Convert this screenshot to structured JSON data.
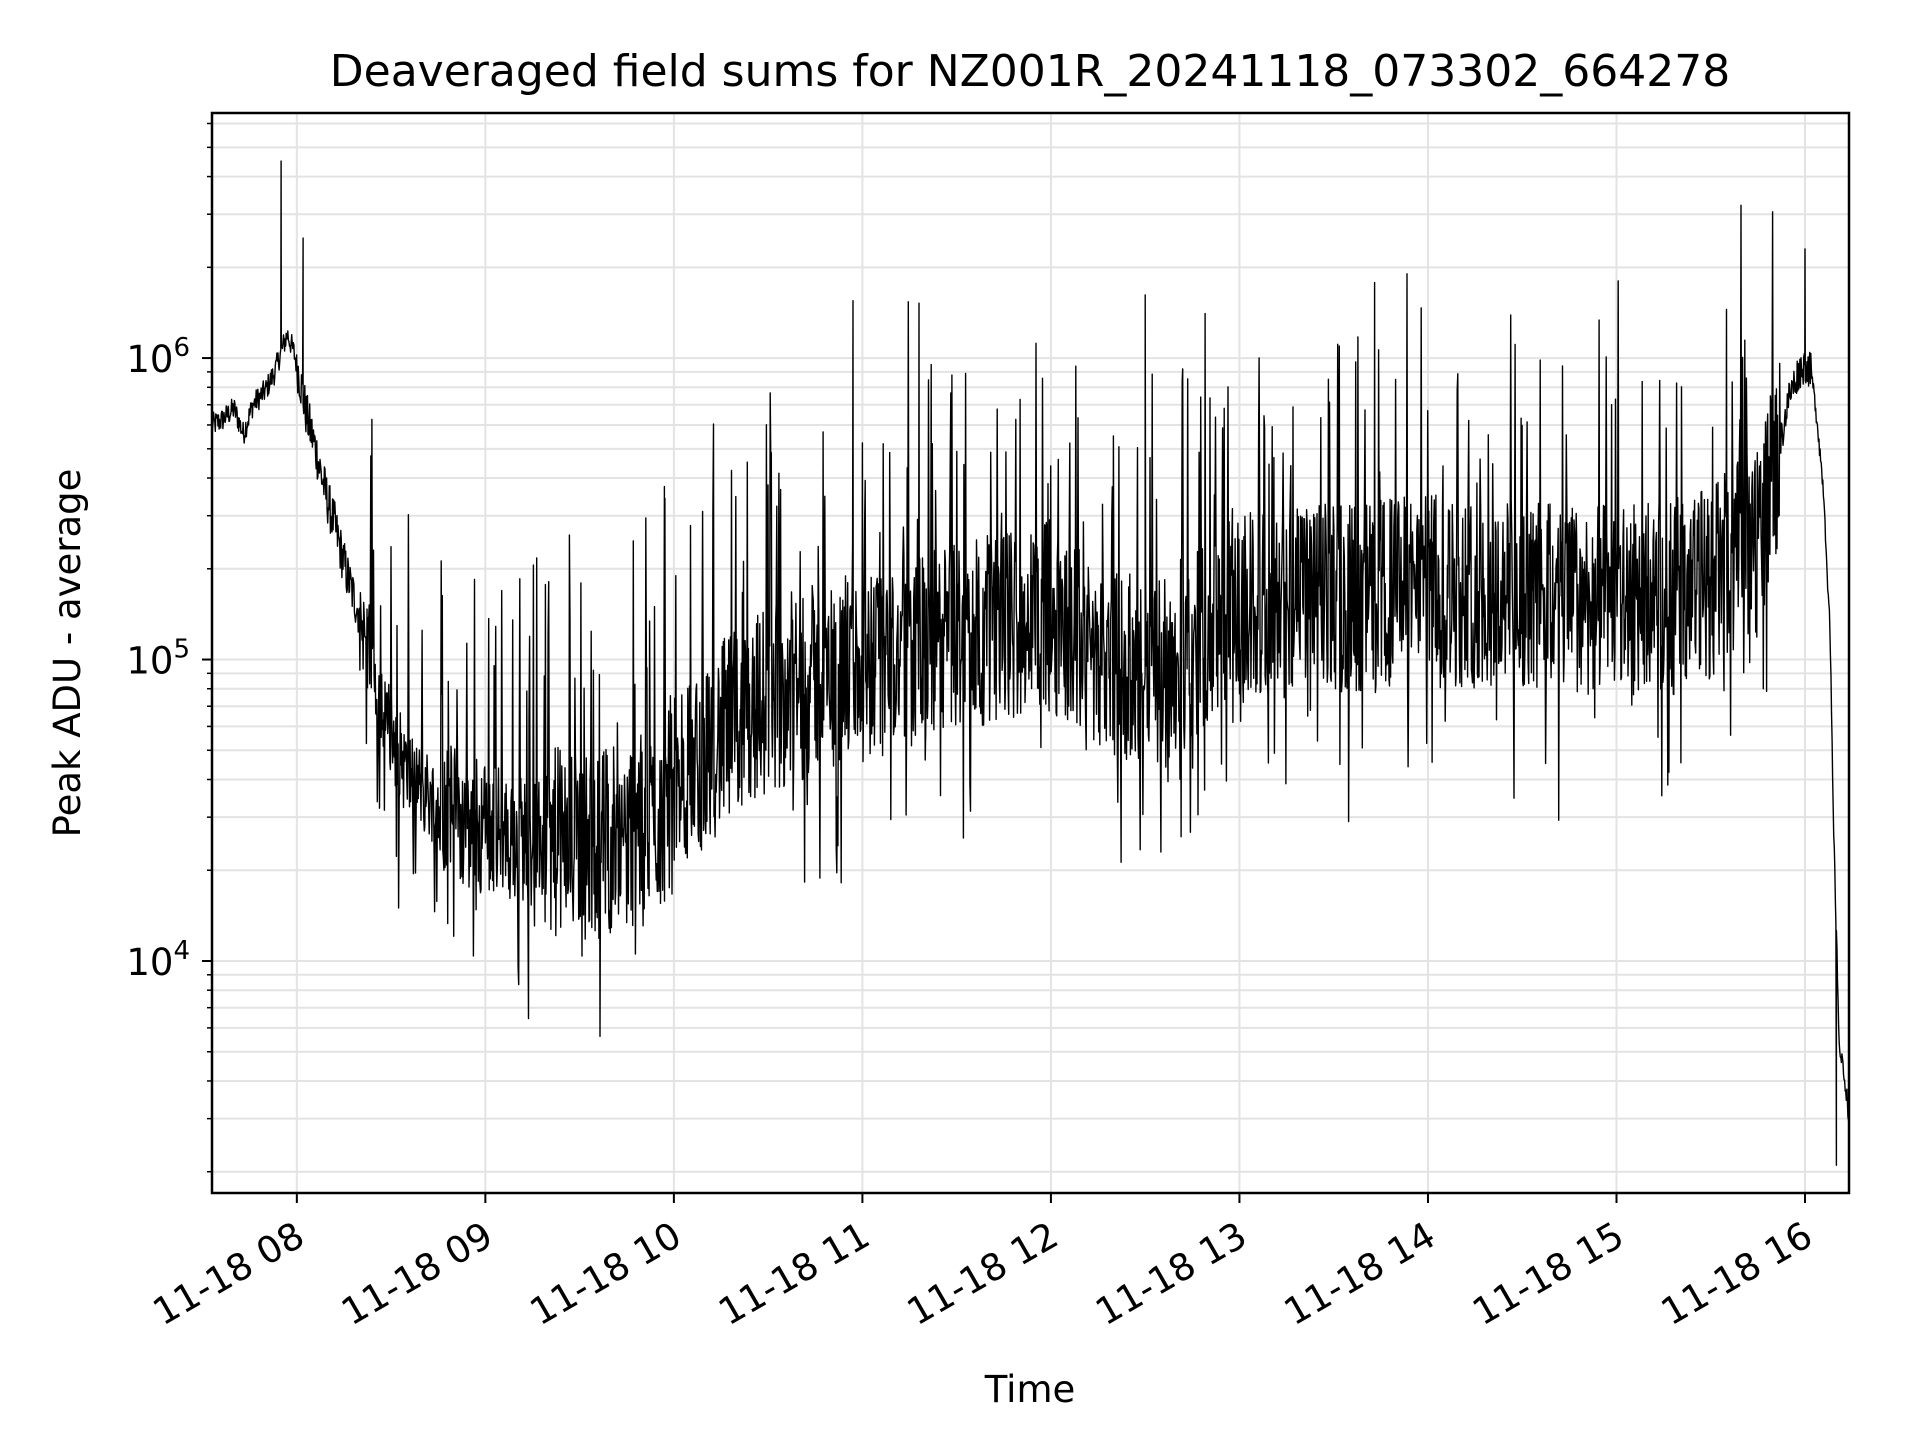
{
  "chart_data": {
    "type": "line",
    "title": "Deaveraged field sums for NZ001R_20241118_073302_664278",
    "xlabel": "Time",
    "ylabel": "Peak ADU - average",
    "x_tick_labels": [
      "11-18 08",
      "11-18 09",
      "11-18 10",
      "11-18 11",
      "11-18 12",
      "11-18 13",
      "11-18 14",
      "11-18 15",
      "11-18 16"
    ],
    "y_tick_labels": [
      {
        "base": "10",
        "exp": "4"
      },
      {
        "base": "10",
        "exp": "5"
      },
      {
        "base": "10",
        "exp": "6"
      }
    ],
    "xlim": [
      "2024-11-18 07:33",
      "2024-11-18 16:14"
    ],
    "ylim": [
      1700,
      6500000
    ],
    "yscale": "log",
    "grid": true,
    "line_color": "#000000",
    "grid_color": "#e3e3e3",
    "series": [
      {
        "x": [
          "07:33",
          "07:36",
          "07:40",
          "07:43",
          "07:46",
          "07:50",
          "07:53",
          "07:55",
          "07:57",
          "07:59",
          "08:01",
          "08:03",
          "08:06",
          "08:08",
          "08:10",
          "08:12",
          "08:14",
          "08:16",
          "08:20",
          "08:24",
          "08:28",
          "08:35",
          "08:45",
          "09:00",
          "09:15",
          "09:30",
          "09:45",
          "09:55",
          "10:10",
          "10:30",
          "10:50",
          "11:00",
          "11:30",
          "12:00",
          "12:30",
          "12:45",
          "13:00",
          "13:30",
          "14:00",
          "14:30",
          "15:00",
          "15:30",
          "15:45",
          "15:50",
          "15:55",
          "15:58",
          "16:00",
          "16:02",
          "16:04",
          "16:06",
          "16:08",
          "16:09",
          "16:10",
          "16:11",
          "16:12",
          "16:13",
          "16:14"
        ],
        "y": [
          600000,
          620000,
          680000,
          560000,
          700000,
          780000,
          900000,
          1050000,
          1200000,
          1050000,
          850000,
          650000,
          500000,
          400000,
          330000,
          280000,
          230000,
          190000,
          140000,
          100000,
          65000,
          42000,
          33000,
          28000,
          25000,
          24000,
          26000,
          30000,
          50000,
          75000,
          90000,
          95000,
          120000,
          140000,
          85000,
          110000,
          150000,
          160000,
          170000,
          165000,
          155000,
          180000,
          260000,
          400000,
          750000,
          900000,
          950000,
          900000,
          600000,
          350000,
          120000,
          30000,
          12000,
          5000,
          4500,
          3800,
          3000
        ]
      }
    ],
    "spikes": [
      {
        "x": "07:55",
        "y": 4500000
      },
      {
        "x": "08:02",
        "y": 2500000
      },
      {
        "x": "10:57",
        "y": 1550000
      },
      {
        "x": "11:18",
        "y": 1520000
      },
      {
        "x": "12:30",
        "y": 1620000
      },
      {
        "x": "13:43",
        "y": 1780000
      },
      {
        "x": "15:35",
        "y": 1450000
      },
      {
        "x": "16:00",
        "y": 2300000
      },
      {
        "x": "09:19",
        "y": 13500
      },
      {
        "x": "09:33",
        "y": 13500
      },
      {
        "x": "09:57",
        "y": 15800
      },
      {
        "x": "16:10",
        "y": 2100
      }
    ]
  }
}
